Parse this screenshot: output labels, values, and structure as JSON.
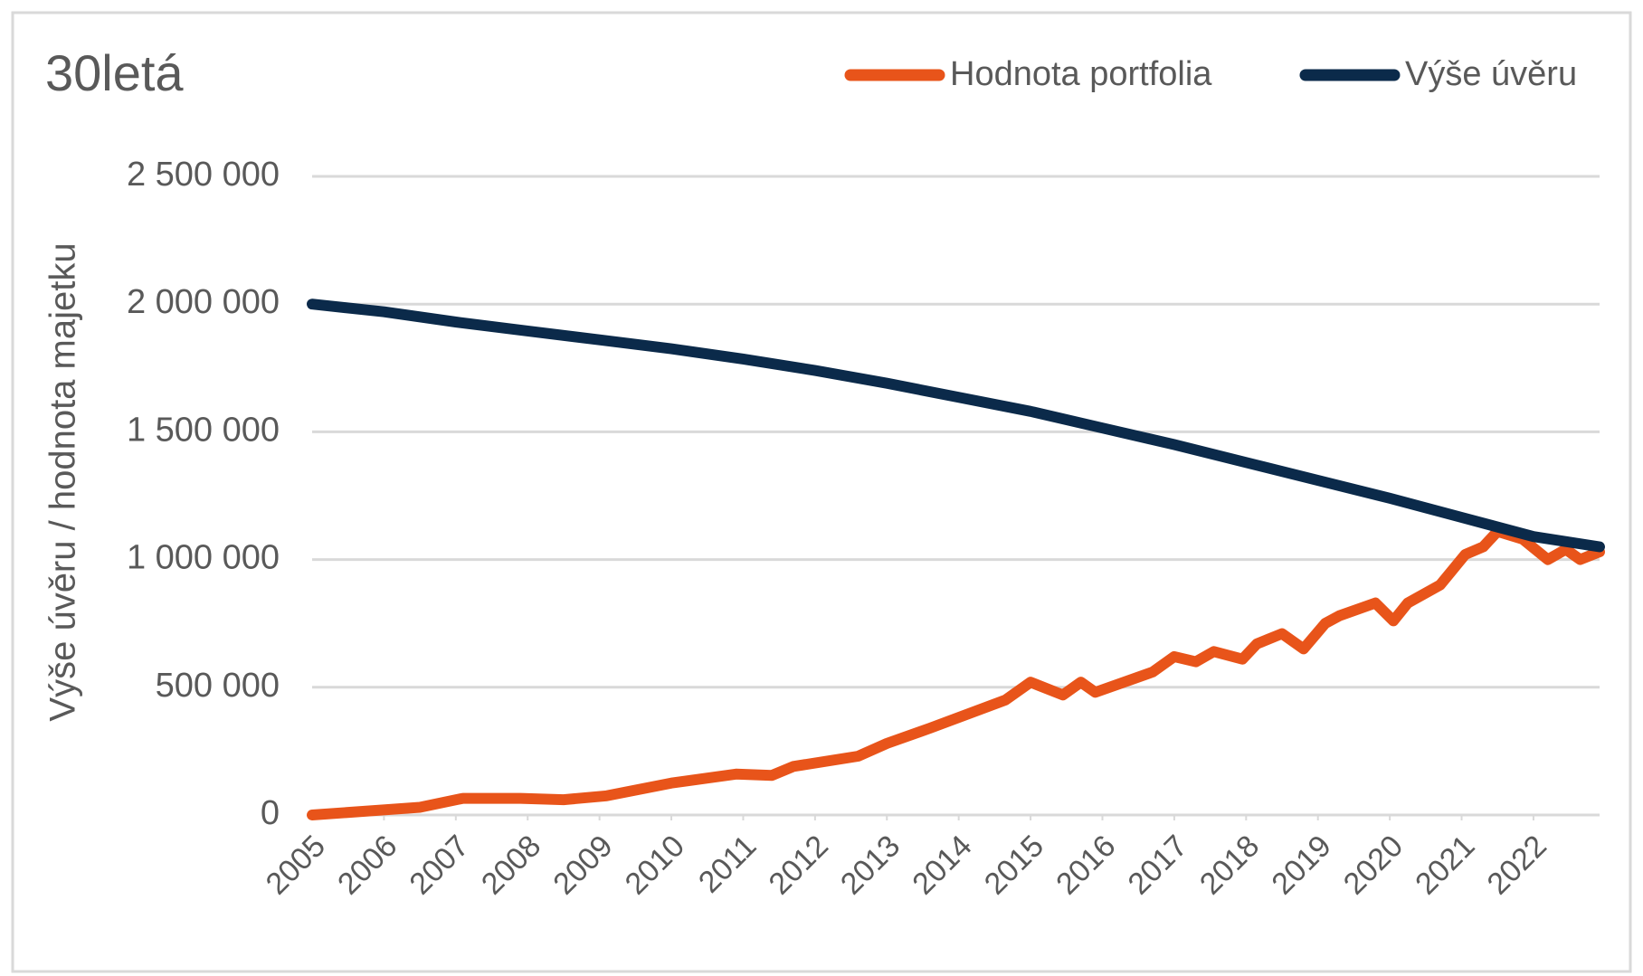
{
  "chart_data": {
    "type": "line",
    "title": "30letá",
    "y_label": "Výše úvěru / hodnota majetku",
    "series": [
      {
        "name": "Hodnota portfolia",
        "color": "#e8541a",
        "x": [
          2005,
          2006.5,
          2007.1,
          2007.9,
          2008.5,
          2009.1,
          2010,
          2010.9,
          2011.4,
          2011.7,
          2012.6,
          2013,
          2013.6,
          2014.65,
          2015,
          2015.45,
          2015.7,
          2015.9,
          2016.7,
          2017,
          2017.3,
          2017.55,
          2017.95,
          2018.15,
          2018.5,
          2018.8,
          2019.1,
          2019.3,
          2019.8,
          2020.05,
          2020.25,
          2020.7,
          2021.05,
          2021.3,
          2021.5,
          2021.85,
          2022.2,
          2022.45,
          2022.65,
          2022.92
        ],
        "values": [
          0,
          30000,
          65000,
          65000,
          60000,
          75000,
          125000,
          160000,
          155000,
          190000,
          230000,
          280000,
          340000,
          450000,
          520000,
          470000,
          520000,
          480000,
          560000,
          620000,
          600000,
          640000,
          610000,
          670000,
          710000,
          650000,
          750000,
          780000,
          830000,
          760000,
          830000,
          900000,
          1020000,
          1050000,
          1110000,
          1080000,
          1000000,
          1040000,
          1000000,
          1030000
        ]
      },
      {
        "name": "Výše úvěru",
        "color": "#0b2a4a",
        "x": [
          2005,
          2006,
          2007,
          2008,
          2009,
          2010,
          2011,
          2012,
          2013,
          2014,
          2015,
          2016,
          2017,
          2018,
          2019,
          2020,
          2021,
          2022,
          2022.92
        ],
        "values": [
          2000000,
          1970000,
          1930000,
          1895000,
          1860000,
          1825000,
          1785000,
          1740000,
          1690000,
          1635000,
          1580000,
          1515000,
          1450000,
          1380000,
          1310000,
          1240000,
          1165000,
          1090000,
          1050000
        ]
      }
    ],
    "xlim": [
      2005,
      2022.92
    ],
    "xticks": [
      2005,
      2006,
      2007,
      2008,
      2009,
      2010,
      2011,
      2012,
      2013,
      2014,
      2015,
      2016,
      2017,
      2018,
      2019,
      2020,
      2021,
      2022
    ],
    "ylim": [
      0,
      2500000
    ],
    "yticks": [
      0,
      {
        "value": 500000,
        "label": "500 000"
      },
      {
        "value": 1000000,
        "label": "1 000 000"
      },
      {
        "value": 1500000,
        "label": "1 500 000"
      },
      {
        "value": 2000000,
        "label": "2 000 000"
      },
      {
        "value": 2500000,
        "label": "2 500 000"
      }
    ],
    "grid": true,
    "legend": "top-right"
  }
}
